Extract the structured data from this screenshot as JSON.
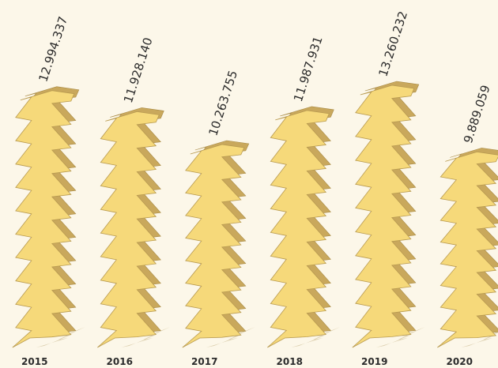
{
  "chart_data": {
    "type": "bar",
    "categories": [
      "2015",
      "2016",
      "2017",
      "2018",
      "2019",
      "2020"
    ],
    "values": [
      12994337,
      11928140,
      10263755,
      11987931,
      13260232,
      9889059
    ],
    "value_labels": [
      "12.994.337",
      "11.928.140",
      "10.263.755",
      "11.987.931",
      "13.260.232",
      "9.889.059"
    ],
    "color": "#f6d97a"
  }
}
